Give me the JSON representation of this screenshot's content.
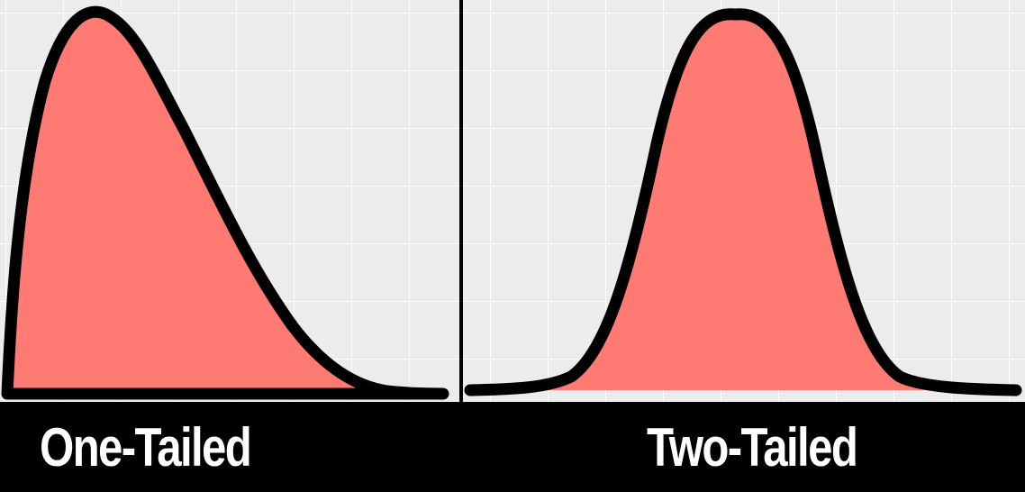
{
  "labels": {
    "one_tailed": "One-Tailed",
    "two_tailed": "Two-Tailed"
  },
  "colors": {
    "fill": "#ff7a72",
    "stroke": "#000000",
    "panel_bg": "#ececec",
    "grid": "#ffffff",
    "label_bar": "#000000",
    "label_text": "#ffffff"
  }
}
